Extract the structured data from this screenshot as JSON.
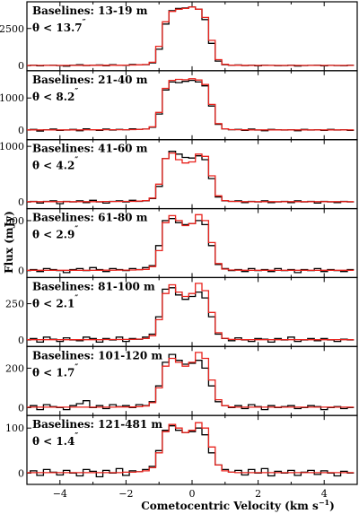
{
  "chart_data": {
    "type": "line",
    "xlabel": "Cometocentric Velocity (km s",
    "xlabel_sup": "−1",
    "xlabel_close": ")",
    "ylabel": "Flux (mJy)",
    "xlim": [
      -5,
      5
    ],
    "x_ticks": [
      -4,
      -2,
      0,
      2,
      4
    ],
    "x_tick_labels": [
      "−4",
      "−2",
      "0",
      "2",
      "4"
    ],
    "series_colors": {
      "observed": "#000000",
      "model": "#e8231d"
    },
    "x": [
      -5.0,
      -4.8,
      -4.6,
      -4.4,
      -4.2,
      -4.0,
      -3.8,
      -3.6,
      -3.4,
      -3.2,
      -3.0,
      -2.8,
      -2.6,
      -2.4,
      -2.2,
      -2.0,
      -1.8,
      -1.6,
      -1.4,
      -1.2,
      -1.0,
      -0.8,
      -0.6,
      -0.4,
      -0.2,
      0.0,
      0.2,
      0.4,
      0.6,
      0.8,
      1.0,
      1.2,
      1.4,
      1.6,
      1.8,
      2.0,
      2.2,
      2.4,
      2.6,
      2.8,
      3.0,
      3.2,
      3.4,
      3.6,
      3.8,
      4.0,
      4.2,
      4.4,
      4.6,
      4.8
    ],
    "panels": [
      {
        "label_line1": "Baselines: 13-19 m",
        "label_line2": "θ < 13.7",
        "label_sup": "″",
        "ylim": [
          -350,
          4300
        ],
        "y_ticks": [
          0,
          2500
        ],
        "observed": [
          0,
          30,
          -20,
          10,
          20,
          0,
          -40,
          30,
          50,
          0,
          20,
          40,
          -10,
          60,
          30,
          10,
          70,
          40,
          60,
          180,
          1100,
          2800,
          3700,
          3850,
          3880,
          3950,
          3800,
          3100,
          1500,
          300,
          60,
          20,
          40,
          0,
          30,
          -20,
          20,
          10,
          -10,
          0,
          20,
          -30,
          0,
          10,
          30,
          -20,
          10,
          0,
          -10,
          20
        ],
        "model": [
          10,
          10,
          10,
          10,
          10,
          10,
          10,
          10,
          10,
          15,
          15,
          15,
          20,
          20,
          25,
          30,
          35,
          45,
          70,
          220,
          1300,
          2950,
          3650,
          3800,
          3850,
          3950,
          3800,
          3250,
          1700,
          400,
          80,
          30,
          20,
          15,
          10,
          10,
          10,
          10,
          10,
          10,
          10,
          10,
          10,
          10,
          10,
          10,
          10,
          10,
          10,
          10
        ]
      },
      {
        "label_line1": "Baselines: 21-40 m",
        "label_line2": "θ < 8.2",
        "label_sup": "″",
        "ylim": [
          -300,
          1850
        ],
        "y_ticks": [
          0,
          1000
        ],
        "observed": [
          0,
          20,
          -30,
          10,
          30,
          -10,
          0,
          20,
          -20,
          40,
          10,
          -10,
          30,
          0,
          20,
          10,
          40,
          20,
          30,
          90,
          500,
          1250,
          1500,
          1480,
          1520,
          1550,
          1500,
          1380,
          750,
          180,
          40,
          10,
          20,
          -10,
          30,
          0,
          -20,
          20,
          10,
          0,
          10,
          -20,
          20,
          0,
          10,
          -10,
          20,
          0,
          10,
          -10
        ],
        "model": [
          5,
          5,
          5,
          5,
          5,
          5,
          5,
          5,
          5,
          8,
          8,
          8,
          10,
          10,
          10,
          12,
          15,
          20,
          30,
          100,
          550,
          1300,
          1550,
          1580,
          1570,
          1600,
          1560,
          1420,
          800,
          200,
          40,
          15,
          10,
          8,
          5,
          5,
          5,
          5,
          5,
          5,
          5,
          5,
          5,
          5,
          5,
          5,
          5,
          5,
          5,
          5
        ]
      },
      {
        "label_line1": "Baselines: 41-60 m",
        "label_line2": "θ < 4.2",
        "label_sup": "″",
        "ylim": [
          -120,
          1120
        ],
        "y_ticks": [
          0,
          1000
        ],
        "observed": [
          0,
          10,
          -20,
          10,
          20,
          -30,
          10,
          0,
          20,
          -10,
          30,
          0,
          -20,
          10,
          20,
          0,
          30,
          10,
          20,
          60,
          280,
          780,
          910,
          860,
          800,
          790,
          830,
          760,
          420,
          90,
          20,
          10,
          20,
          -10,
          10,
          0,
          20,
          -10,
          0,
          10,
          -10,
          20,
          0,
          10,
          -20,
          10,
          0,
          -10,
          10,
          0
        ],
        "model": [
          5,
          5,
          5,
          5,
          5,
          5,
          5,
          5,
          5,
          5,
          5,
          5,
          8,
          8,
          8,
          10,
          10,
          15,
          25,
          70,
          320,
          780,
          880,
          760,
          700,
          720,
          860,
          820,
          470,
          110,
          25,
          10,
          8,
          5,
          5,
          5,
          5,
          5,
          5,
          5,
          5,
          5,
          5,
          5,
          5,
          5,
          5,
          5,
          5,
          5
        ]
      },
      {
        "label_line1": "Baselines: 61-80 m",
        "label_line2": "θ < 2.9",
        "label_sup": "″",
        "ylim": [
          -70,
          620
        ],
        "y_ticks": [
          0,
          500
        ],
        "observed": [
          0,
          10,
          -10,
          20,
          10,
          0,
          -20,
          10,
          20,
          0,
          30,
          10,
          -10,
          20,
          10,
          0,
          20,
          10,
          30,
          50,
          250,
          500,
          520,
          480,
          460,
          470,
          500,
          460,
          250,
          60,
          20,
          0,
          10,
          -10,
          20,
          0,
          10,
          -10,
          20,
          0,
          10,
          -20,
          10,
          0,
          20,
          -10,
          10,
          0,
          -10,
          10
        ],
        "model": [
          3,
          3,
          3,
          3,
          3,
          3,
          3,
          3,
          3,
          3,
          3,
          3,
          4,
          4,
          5,
          5,
          6,
          8,
          12,
          40,
          200,
          480,
          550,
          500,
          450,
          470,
          560,
          500,
          280,
          70,
          15,
          6,
          4,
          3,
          3,
          3,
          3,
          3,
          3,
          3,
          3,
          3,
          3,
          3,
          3,
          3,
          3,
          3,
          3,
          3
        ]
      },
      {
        "label_line1": "Baselines: 81-100 m",
        "label_line2": "θ < 2.1",
        "label_sup": "″",
        "ylim": [
          -45,
          430
        ],
        "y_ticks": [
          0,
          250
        ],
        "observed": [
          0,
          10,
          -15,
          20,
          5,
          -10,
          15,
          0,
          -5,
          20,
          10,
          -15,
          10,
          0,
          20,
          -10,
          10,
          5,
          20,
          40,
          160,
          350,
          360,
          310,
          280,
          300,
          330,
          290,
          160,
          40,
          10,
          -5,
          15,
          0,
          -10,
          10,
          5,
          -15,
          10,
          0,
          20,
          -10,
          0,
          10,
          -5,
          10,
          0,
          -10,
          5,
          0
        ],
        "model": [
          2,
          2,
          2,
          2,
          2,
          2,
          2,
          2,
          2,
          2,
          2,
          2,
          3,
          3,
          3,
          4,
          4,
          6,
          10,
          30,
          140,
          320,
          380,
          330,
          300,
          320,
          390,
          340,
          190,
          50,
          12,
          4,
          3,
          2,
          2,
          2,
          2,
          2,
          2,
          2,
          2,
          2,
          2,
          2,
          2,
          2,
          2,
          2,
          2,
          2
        ]
      },
      {
        "label_line1": "Baselines: 101-120 m",
        "label_line2": "θ < 1.7",
        "label_sup": "″",
        "ylim": [
          -40,
          310
        ],
        "y_ticks": [
          0,
          200
        ],
        "observed": [
          0,
          10,
          -10,
          15,
          5,
          0,
          -10,
          10,
          20,
          35,
          0,
          10,
          -5,
          15,
          5,
          10,
          0,
          15,
          10,
          30,
          110,
          230,
          270,
          240,
          220,
          225,
          240,
          200,
          110,
          30,
          10,
          0,
          10,
          -5,
          15,
          5,
          -10,
          10,
          0,
          5,
          10,
          -5,
          0,
          10,
          5,
          -10,
          0,
          5,
          -5,
          0
        ],
        "model": [
          2,
          2,
          2,
          2,
          2,
          2,
          2,
          2,
          2,
          2,
          2,
          2,
          2,
          2,
          3,
          3,
          3,
          5,
          8,
          25,
          100,
          210,
          250,
          230,
          210,
          230,
          280,
          250,
          140,
          40,
          10,
          3,
          2,
          2,
          2,
          2,
          2,
          2,
          2,
          2,
          2,
          2,
          2,
          2,
          2,
          2,
          2,
          2,
          2,
          2
        ]
      },
      {
        "label_line1": "Baselines: 121-481 m",
        "label_line2": "θ < 1.4",
        "label_sup": "″",
        "ylim": [
          -25,
          128
        ],
        "y_ticks": [
          0,
          100
        ],
        "observed": [
          0,
          5,
          -5,
          8,
          2,
          -4,
          6,
          0,
          -6,
          8,
          4,
          -8,
          6,
          0,
          10,
          -5,
          5,
          3,
          8,
          15,
          50,
          95,
          105,
          95,
          90,
          92,
          100,
          85,
          45,
          18,
          8,
          2,
          6,
          -4,
          8,
          0,
          10,
          -6,
          4,
          0,
          6,
          -5,
          2,
          6,
          -3,
          5,
          0,
          -6,
          4,
          0
        ],
        "model": [
          1,
          1,
          1,
          1,
          1,
          1,
          1,
          1,
          1,
          1,
          1,
          1,
          1,
          1,
          1,
          2,
          2,
          3,
          5,
          12,
          45,
          92,
          108,
          100,
          90,
          95,
          112,
          100,
          58,
          18,
          5,
          2,
          1,
          1,
          1,
          1,
          1,
          1,
          1,
          1,
          1,
          1,
          1,
          1,
          1,
          1,
          1,
          1,
          1,
          1
        ]
      }
    ]
  }
}
